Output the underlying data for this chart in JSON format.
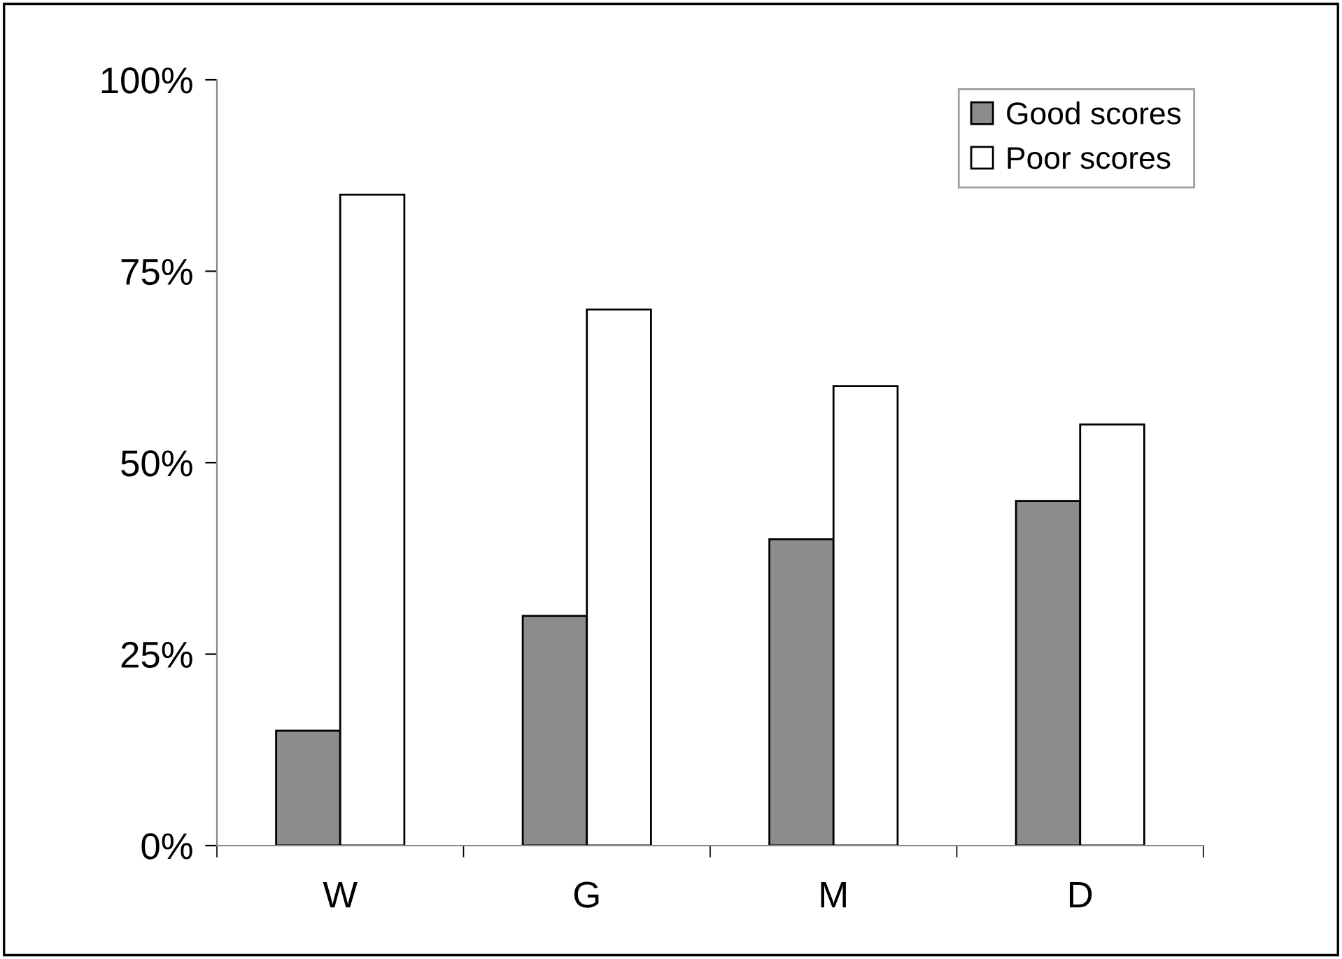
{
  "chart_data": {
    "type": "bar",
    "categories": [
      "W",
      "G",
      "M",
      "D"
    ],
    "series": [
      {
        "name": "Good scores",
        "color": "#8c8c8c",
        "values": [
          15,
          30,
          40,
          45
        ]
      },
      {
        "name": "Poor scores",
        "color": "#ffffff",
        "values": [
          85,
          70,
          60,
          55
        ]
      }
    ],
    "ylim": [
      0,
      100
    ],
    "yticks": [
      {
        "value": 0,
        "label": "0%"
      },
      {
        "value": 25,
        "label": "25%"
      },
      {
        "value": 50,
        "label": "50%"
      },
      {
        "value": 75,
        "label": "75%"
      },
      {
        "value": 100,
        "label": "100%"
      }
    ],
    "grid": false,
    "legend": "top right"
  }
}
